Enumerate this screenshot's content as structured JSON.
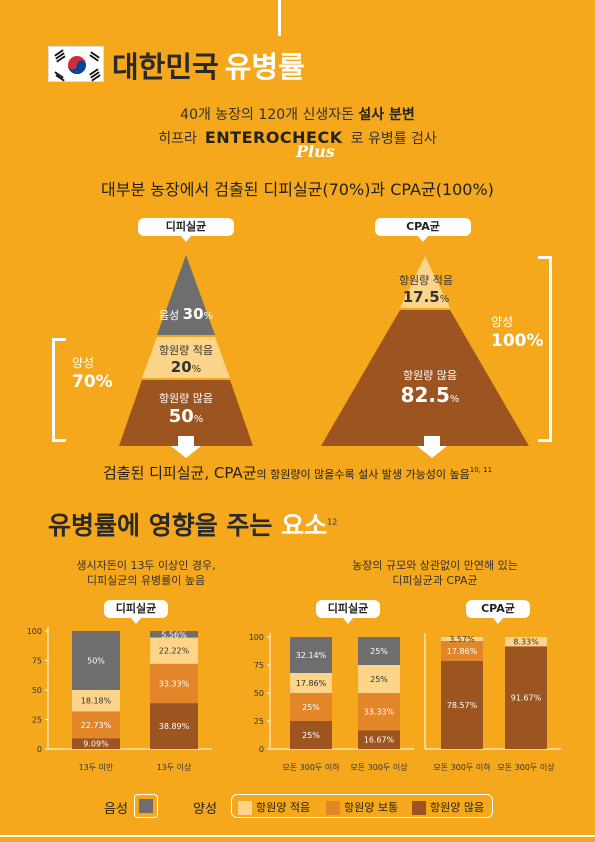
{
  "header": {
    "title_dark": "대한민국",
    "title_white": "유병률",
    "intro_line1": "40개 농장의 120개 신생자돈",
    "intro_line1_bold": "설사 분변",
    "intro_line2_pre": "히프라",
    "brand": "ENTEROCHECK",
    "brand_plus": "Plus",
    "intro_line2_post": "로 유병률 검사",
    "headline": "대부분 농장에서 검출된 디피실균(70%)과 CPA균(100%)"
  },
  "pyramids": {
    "left": {
      "tag": "디피실균",
      "positive_label": "양성",
      "positive_value": "70%",
      "levels": [
        {
          "label": "음성",
          "value": "30",
          "unit": "%"
        },
        {
          "label": "항원량 적음",
          "value": "20",
          "unit": "%"
        },
        {
          "label": "항원량 많음",
          "value": "50",
          "unit": "%"
        }
      ]
    },
    "right": {
      "tag": "CPA균",
      "positive_label": "양성",
      "positive_value": "100%",
      "levels": [
        {
          "label": "항원량 적음",
          "value": "17.5",
          "unit": "%"
        },
        {
          "label": "항원량 많음",
          "value": "82.5",
          "unit": "%"
        }
      ]
    }
  },
  "conclusion": {
    "main": "검출된 디피실균, CPA균",
    "small": "의 항원량이 많을수록 설사 발생 가능성이 높음",
    "ref": "10, 11"
  },
  "section2": {
    "title_dark": "유병률에 영향을 주는",
    "title_white": "요소",
    "ref": "12",
    "left_subtitle_1": "생시자돈이 13두 이상인 경우,",
    "left_subtitle_2": "디피실균의 유병률이 높음",
    "right_subtitle_1": "농장의 규모와 상관없이 만연해 있는",
    "right_subtitle_2": "디피실균과 CPA균",
    "tag_left": "디피실균",
    "tag_mid": "디피실균",
    "tag_right": "CPA균"
  },
  "colors": {
    "background": "#F5A81C",
    "negative": "#6E6E6E",
    "low": "#FCD48A",
    "medium": "#E3862A",
    "high": "#9C5420"
  },
  "chart_data": [
    {
      "type": "bar",
      "stacked": true,
      "categories": [
        "13두 미만",
        "13두 이상"
      ],
      "ylim": [
        0,
        100
      ],
      "yticks": [
        0,
        25,
        50,
        75,
        100
      ],
      "series": [
        {
          "name": "항원량 많음",
          "values": [
            9.09,
            38.89
          ],
          "labels": [
            "9.09%",
            "38.89%"
          ]
        },
        {
          "name": "항원량 보통",
          "values": [
            22.73,
            33.33
          ],
          "labels": [
            "22.73%",
            "33.33%"
          ]
        },
        {
          "name": "항원량 적음",
          "values": [
            18.18,
            22.22
          ],
          "labels": [
            "18.18%",
            "22.22%"
          ]
        },
        {
          "name": "음성",
          "values": [
            50,
            5.56
          ],
          "labels": [
            "50%",
            "5.56%"
          ]
        }
      ]
    },
    {
      "type": "bar",
      "stacked": true,
      "categories": [
        "모돈 300두 이하",
        "모돈 300두 이상"
      ],
      "ylim": [
        0,
        100
      ],
      "yticks": [
        0,
        25,
        50,
        75,
        100
      ],
      "series": [
        {
          "name": "항원량 많음",
          "values": [
            25,
            16.67
          ],
          "labels": [
            "25%",
            "16.67%"
          ]
        },
        {
          "name": "항원량 보통",
          "values": [
            25,
            33.33
          ],
          "labels": [
            "25%",
            "33.33%"
          ]
        },
        {
          "name": "항원량 적음",
          "values": [
            17.86,
            25
          ],
          "labels": [
            "17.86%",
            "25%"
          ]
        },
        {
          "name": "음성",
          "values": [
            32.14,
            25
          ],
          "labels": [
            "32.14%",
            "25%"
          ]
        }
      ]
    },
    {
      "type": "bar",
      "stacked": true,
      "categories": [
        "모돈 300두 이하",
        "모돈 300두 이상"
      ],
      "ylim": [
        0,
        100
      ],
      "series": [
        {
          "name": "항원량 많음",
          "values": [
            78.57,
            91.67
          ],
          "labels": [
            "78.57%",
            "91.67%"
          ]
        },
        {
          "name": "항원량 보통",
          "values": [
            17.86,
            0
          ],
          "labels": [
            "17.86%",
            ""
          ]
        },
        {
          "name": "항원량 적음",
          "values": [
            3.57,
            8.33
          ],
          "labels": [
            "3.57%",
            "8.33%"
          ]
        }
      ]
    }
  ],
  "legend": {
    "negative_group": "음성",
    "positive_group": "양성",
    "items": [
      "항원양 적음",
      "항원양 보통",
      "항원양 많음"
    ]
  }
}
